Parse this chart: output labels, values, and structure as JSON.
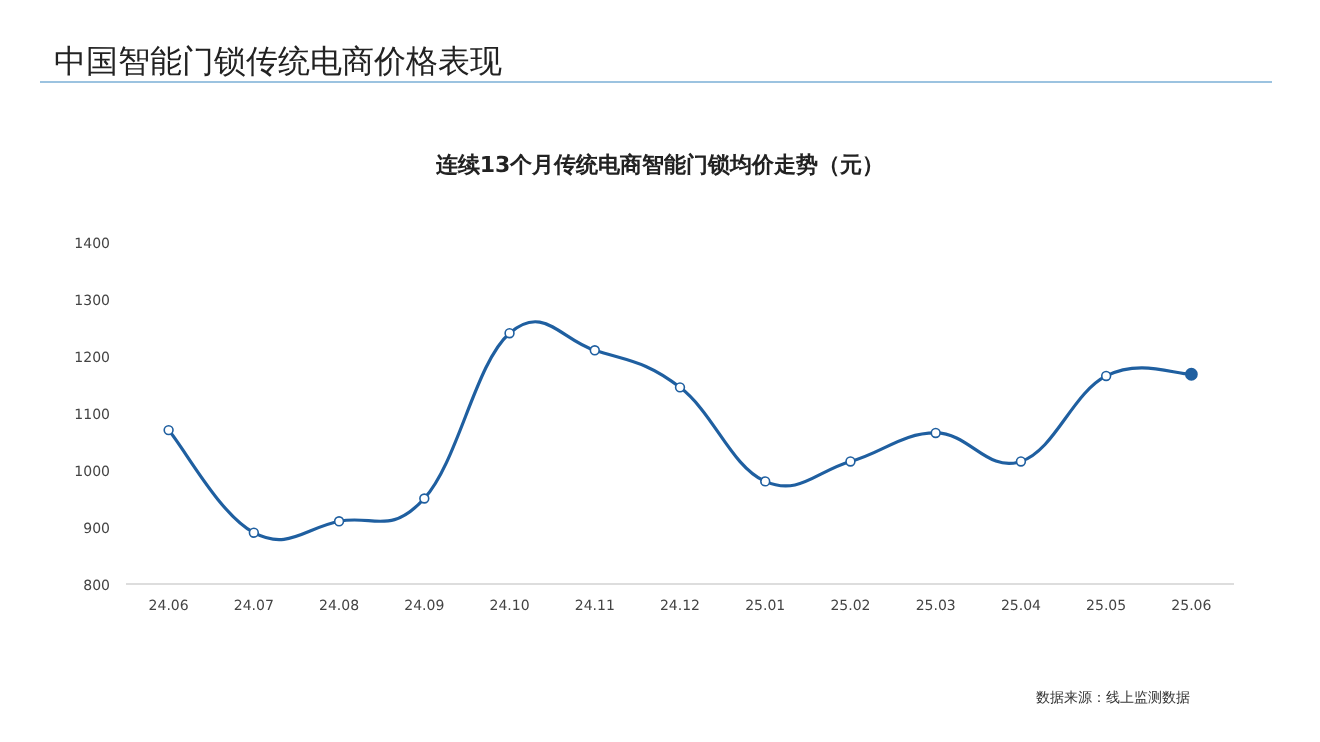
{
  "chart_data": {
    "type": "line",
    "title": "中国智能门锁传统电商价格表现",
    "subtitle": "连续13个月传统电商智能门锁均价走势（元）",
    "categories": [
      "24.06",
      "24.07",
      "24.08",
      "24.09",
      "24.10",
      "24.11",
      "24.12",
      "25.01",
      "25.02",
      "25.03",
      "25.04",
      "25.05",
      "25.06"
    ],
    "series": [
      {
        "color": "#1f5fa0",
        "values": [
          1070,
          890,
          910,
          950,
          1240,
          1210,
          1145,
          980,
          1015,
          1065,
          1015,
          1165,
          1168
        ]
      }
    ],
    "ylim": [
      800,
      1400
    ],
    "yticks": [
      800,
      900,
      1000,
      1100,
      1200,
      1300,
      1400
    ],
    "marker": "circle",
    "line_style": "solid",
    "annotations": [
      "数据来源：线上监测数据"
    ]
  }
}
